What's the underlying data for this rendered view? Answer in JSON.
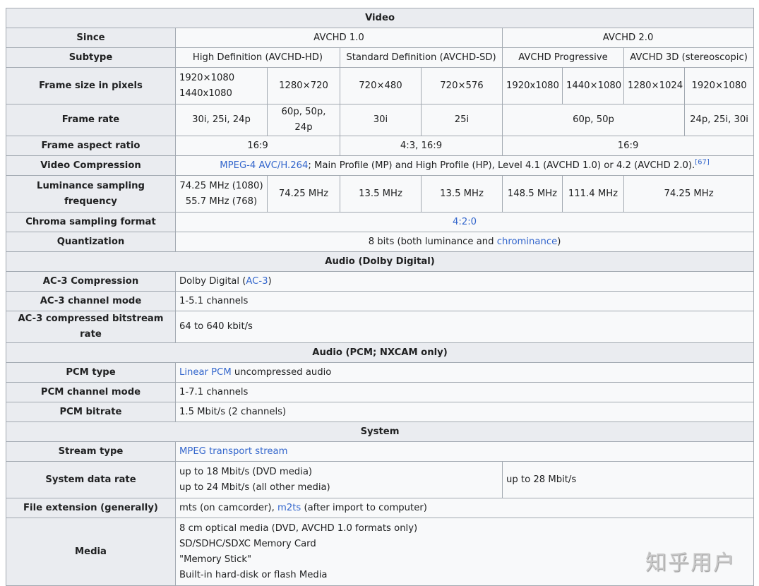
{
  "sections": {
    "video": "Video",
    "audio_dolby": "Audio (Dolby Digital)",
    "audio_pcm": "Audio (PCM; NXCAM only)",
    "system": "System"
  },
  "labels": {
    "since": "Since",
    "subtype": "Subtype",
    "frame_size": "Frame size in pixels",
    "frame_rate": "Frame rate",
    "aspect": "Frame aspect ratio",
    "compression": "Video Compression",
    "luma": "Luminance sampling frequency",
    "chroma": "Chroma sampling format",
    "quant": "Quantization",
    "ac3_comp": "AC-3 Compression",
    "ac3_mode": "AC-3 channel mode",
    "ac3_rate": "AC-3 compressed bitstream rate",
    "pcm_type": "PCM type",
    "pcm_mode": "PCM channel mode",
    "pcm_rate": "PCM bitrate",
    "stream": "Stream type",
    "sys_rate": "System data rate",
    "ext": "File extension (generally)",
    "media": "Media"
  },
  "since": [
    "AVCHD 1.0",
    "AVCHD 2.0"
  ],
  "subtype": [
    "High Definition (AVCHD-HD)",
    "Standard Definition (AVCHD-SD)",
    "AVCHD Progressive",
    "AVCHD 3D (stereoscopic)"
  ],
  "frame_size": {
    "hd1_a": "1920×1080",
    "hd1_b": "1440x1080",
    "hd2": "1280×720",
    "sd1": "720×480",
    "sd2": "720×576",
    "p1": "1920x1080",
    "p2": "1440×1080",
    "d1": "1280×1024",
    "d2": "1920×1080"
  },
  "frame_rate": [
    "30i, 25i, 24p",
    "60p, 50p, 24p",
    "30i",
    "25i",
    "60p, 50p",
    "24p, 25i, 30i"
  ],
  "aspect": [
    "16:9",
    "4:3, 16:9",
    "16:9"
  ],
  "compression": {
    "link": "MPEG-4 AVC/H.264",
    "text": "; Main Profile (MP) and High Profile (HP), Level 4.1 (AVCHD 1.0) or 4.2 (AVCHD 2.0).",
    "ref": "[67]"
  },
  "luma": {
    "a1": "74.25 MHz (1080)",
    "a2": "55.7 MHz (768)",
    "b": "74.25 MHz",
    "c": "13.5 MHz",
    "d": "13.5 MHz",
    "e": "148.5 MHz",
    "f": "111.4 MHz",
    "g": "74.25 MHz"
  },
  "chroma": "4:2:0",
  "quant": {
    "pre": "8 bits (both luminance and ",
    "link": "chrominance",
    "post": ")"
  },
  "ac3_comp": {
    "pre": "Dolby Digital (",
    "link": "AC-3",
    "post": ")"
  },
  "ac3_mode": "1-5.1 channels",
  "ac3_rate": "64 to 640 kbit/s",
  "pcm_type": {
    "link": "Linear PCM",
    "post": " uncompressed audio"
  },
  "pcm_mode": "1-7.1 channels",
  "pcm_rate": "1.5 Mbit/s (2 channels)",
  "stream": "MPEG transport stream",
  "sys_rate": {
    "a1": "up to 18 Mbit/s (DVD media)",
    "a2": "up to 24 Mbit/s (all other media)",
    "b": "up to 28 Mbit/s"
  },
  "ext": {
    "pre": "mts (on camcorder), ",
    "link": "m2ts",
    "post": " (after import to computer)"
  },
  "media": [
    "8 cm optical media (DVD, AVCHD 1.0 formats only)",
    "SD/SDHC/SDXC Memory Card",
    "\"Memory Stick\"",
    "Built-in hard-disk or flash Media"
  ],
  "watermark": "知乎用户",
  "colors": {
    "header_bg": "#eaecf0",
    "cell_bg": "#f8f9fa",
    "border": "#a2a9b1",
    "link": "#3366cc"
  }
}
